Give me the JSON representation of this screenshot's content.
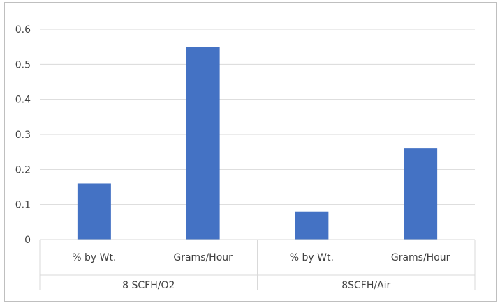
{
  "chart_data": {
    "type": "bar",
    "categories": [
      "% by Wt.",
      "Grams/Hour",
      "% by Wt.",
      "Grams/Hour"
    ],
    "groups": [
      {
        "label": "8 SCFH/O2",
        "categories": [
          "% by Wt.",
          "Grams/Hour"
        ]
      },
      {
        "label": "8SCFH/Air",
        "categories": [
          "% by Wt.",
          "Grams/Hour"
        ]
      }
    ],
    "values": [
      0.16,
      0.55,
      0.08,
      0.26
    ],
    "bar_color": "#4472C4",
    "ylim": [
      0,
      0.6
    ],
    "yticks": [
      "0",
      "0.1",
      "0.2",
      "0.3",
      "0.4",
      "0.5",
      "0.6"
    ],
    "grid": true,
    "title": "",
    "xlabel": "",
    "ylabel": ""
  }
}
